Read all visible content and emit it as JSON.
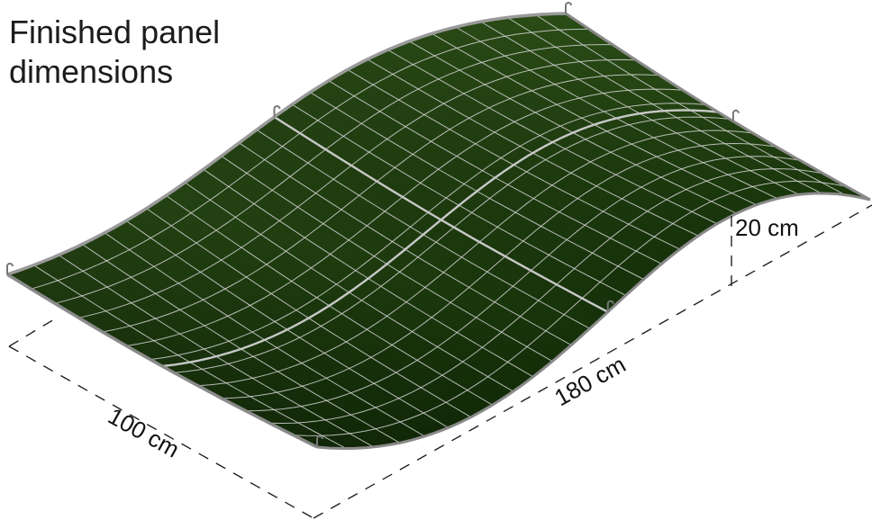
{
  "title_line1": "Finished panel",
  "title_line2": "dimensions",
  "dimensions": {
    "width_label": "100 cm",
    "length_label": "180 cm",
    "height_label": "20 cm"
  },
  "colors": {
    "panel_base": "#1f3d0f",
    "panel_dark": "#0d1c07",
    "panel_light": "#33541d",
    "grid": "#d9d9d9",
    "rod": "#b5b5b5"
  }
}
